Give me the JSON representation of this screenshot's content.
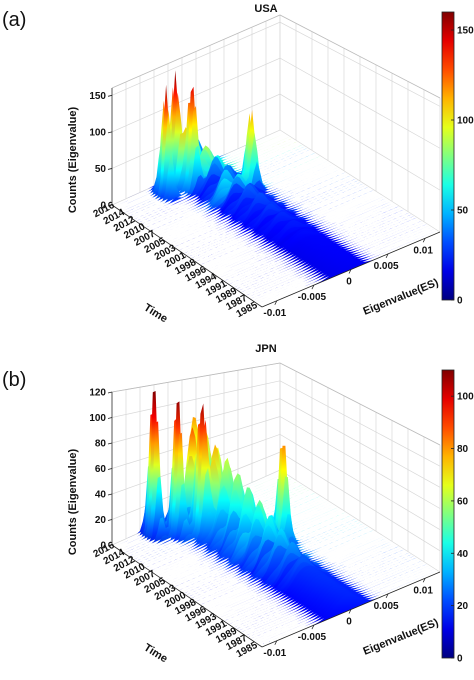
{
  "chart_data": [
    {
      "type": "surface3d",
      "panel_label": "(a)",
      "title": "USA",
      "xlabel": "Eigenvalue(ES)",
      "ylabel": "Time",
      "zlabel": "Counts (Eigenvalue)",
      "x_ticks": [
        "-0.01",
        "-0.005",
        "0",
        "0.005",
        "0.01"
      ],
      "y_ticks": [
        "1985",
        "1987",
        "1989",
        "1991",
        "1994",
        "1996",
        "1998",
        "2001",
        "2003",
        "2005",
        "2007",
        "2010",
        "2012",
        "2014",
        "2016"
      ],
      "z_ticks": [
        "0",
        "50",
        "100",
        "150"
      ],
      "zlim": [
        0,
        160
      ],
      "colorbar_ticks": [
        "0",
        "50",
        "100",
        "150"
      ],
      "colorbar_range": [
        0,
        160
      ],
      "colormap": "jet",
      "grid": true,
      "peaks": [
        {
          "eigenvalue": -0.006,
          "time": "2014",
          "count": 150
        },
        {
          "eigenvalue": -0.004,
          "time": "2015",
          "count": 155
        },
        {
          "eigenvalue": -0.003,
          "time": "2013",
          "count": 140
        },
        {
          "eigenvalue": 0.002,
          "time": "2008",
          "count": 105
        }
      ]
    },
    {
      "type": "surface3d",
      "panel_label": "(b)",
      "title": "JPN",
      "xlabel": "Eigenvalue(ES)",
      "ylabel": "Time",
      "zlabel": "Counts (Eigenvalue)",
      "x_ticks": [
        "-0.01",
        "-0.005",
        "0",
        "0.005",
        "0.01"
      ],
      "y_ticks": [
        "1985",
        "1987",
        "1989",
        "1991",
        "1993",
        "1996",
        "1998",
        "2000",
        "2003",
        "2005",
        "2007",
        "2010",
        "2012",
        "2014",
        "2016"
      ],
      "z_ticks": [
        "0",
        "20",
        "40",
        "60",
        "80",
        "100",
        "120"
      ],
      "zlim": [
        0,
        120
      ],
      "colorbar_ticks": [
        "0",
        "20",
        "40",
        "60",
        "80",
        "100"
      ],
      "colorbar_range": [
        0,
        110
      ],
      "colormap": "jet",
      "grid": true,
      "peaks": [
        {
          "eigenvalue": -0.007,
          "time": "2015",
          "count": 125
        },
        {
          "eigenvalue": -0.005,
          "time": "2013",
          "count": 115
        },
        {
          "eigenvalue": -0.003,
          "time": "2011",
          "count": 100
        },
        {
          "eigenvalue": 0.003,
          "time": "2003",
          "count": 85
        }
      ]
    }
  ]
}
